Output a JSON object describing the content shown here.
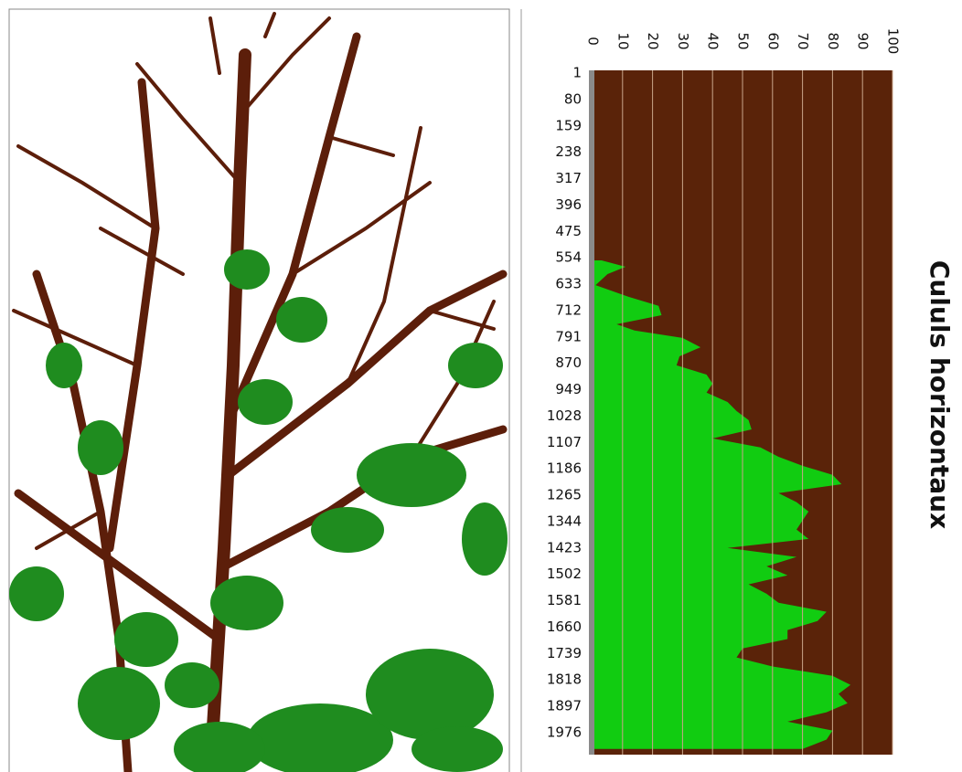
{
  "chart_data": {
    "type": "area",
    "orientation": "horizontal",
    "title": "Cululs horizontaux",
    "x": [
      562,
      581,
      603,
      636,
      671,
      698,
      726,
      753,
      772,
      794,
      822,
      849,
      876,
      904,
      931,
      958,
      986,
      1013,
      1040,
      1068,
      1095,
      1122,
      1150,
      1177,
      1204,
      1232,
      1259,
      1286,
      1314,
      1341,
      1368,
      1396,
      1423,
      1450,
      1478,
      1505,
      1532,
      1560,
      1587,
      1614,
      1642,
      1669,
      1696,
      1724,
      1751,
      1778,
      1806,
      1833,
      1860,
      1888,
      1915,
      1943,
      1970,
      1997,
      2025
    ],
    "values": [
      3,
      11,
      5,
      1,
      12,
      22,
      23,
      8,
      14,
      30,
      36,
      29,
      28,
      38,
      40,
      38,
      45,
      48,
      52,
      53,
      40,
      56,
      62,
      70,
      80,
      83,
      62,
      68,
      72,
      70,
      68,
      72,
      45,
      68,
      58,
      65,
      52,
      58,
      62,
      78,
      75,
      65,
      65,
      50,
      48,
      60,
      80,
      86,
      82,
      85,
      78,
      65,
      80,
      78,
      70
    ],
    "color": "#11cc11",
    "plot_color": "#5a2309",
    "grid": true,
    "xlim": [
      1,
      2042
    ],
    "xticks": [
      1,
      80,
      159,
      238,
      317,
      396,
      475,
      554,
      633,
      712,
      791,
      870,
      949,
      1028,
      1107,
      1186,
      1265,
      1344,
      1423,
      1502,
      1581,
      1660,
      1739,
      1818,
      1897,
      1976
    ],
    "ylim": [
      0,
      100
    ],
    "yticks": [
      0,
      10,
      20,
      30,
      40,
      50,
      60,
      70,
      80,
      90,
      100
    ]
  }
}
